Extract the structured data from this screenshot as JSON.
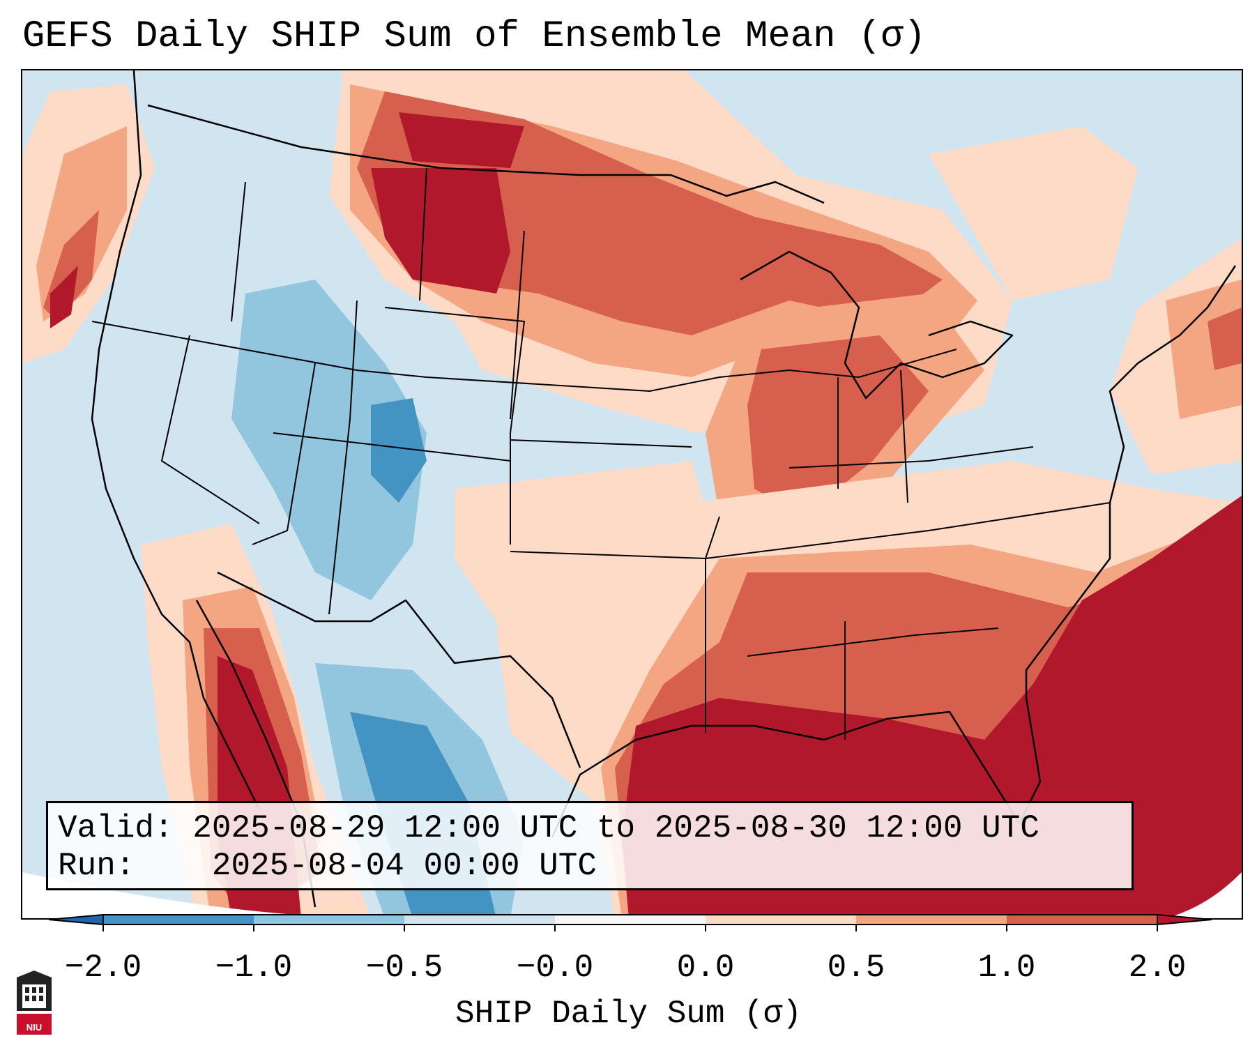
{
  "title": "GEFS Daily SHIP Sum of Ensemble Mean (σ)",
  "info": {
    "valid_label": "Valid:",
    "valid_value": "2025-08-29 12:00 UTC to 2025-08-30 12:00 UTC",
    "run_label": "Run:",
    "run_value": "2025-08-04 00:00 UTC"
  },
  "colorbar": {
    "title": "SHIP Daily Sum (σ)",
    "tick_labels": [
      "−2.0",
      "−1.0",
      "−0.5",
      "−0.0",
      "0.0",
      "0.5",
      "1.0",
      "2.0"
    ],
    "bins": [
      {
        "from": -2.0,
        "to": -1.0,
        "color": "#4393c3"
      },
      {
        "from": -1.0,
        "to": -0.5,
        "color": "#92c5de"
      },
      {
        "from": -0.5,
        "to": -0.0,
        "color": "#d1e5f0"
      },
      {
        "from": -0.0,
        "to": 0.0,
        "color": "#f7f7f7"
      },
      {
        "from": 0.0,
        "to": 0.5,
        "color": "#fddbc7"
      },
      {
        "from": 0.5,
        "to": 1.0,
        "color": "#f4a582"
      },
      {
        "from": 1.0,
        "to": 2.0,
        "color": "#d6604d"
      }
    ],
    "under_color": "#2166ac",
    "over_color": "#b2182b"
  },
  "logo": {
    "text": "NIU"
  }
}
